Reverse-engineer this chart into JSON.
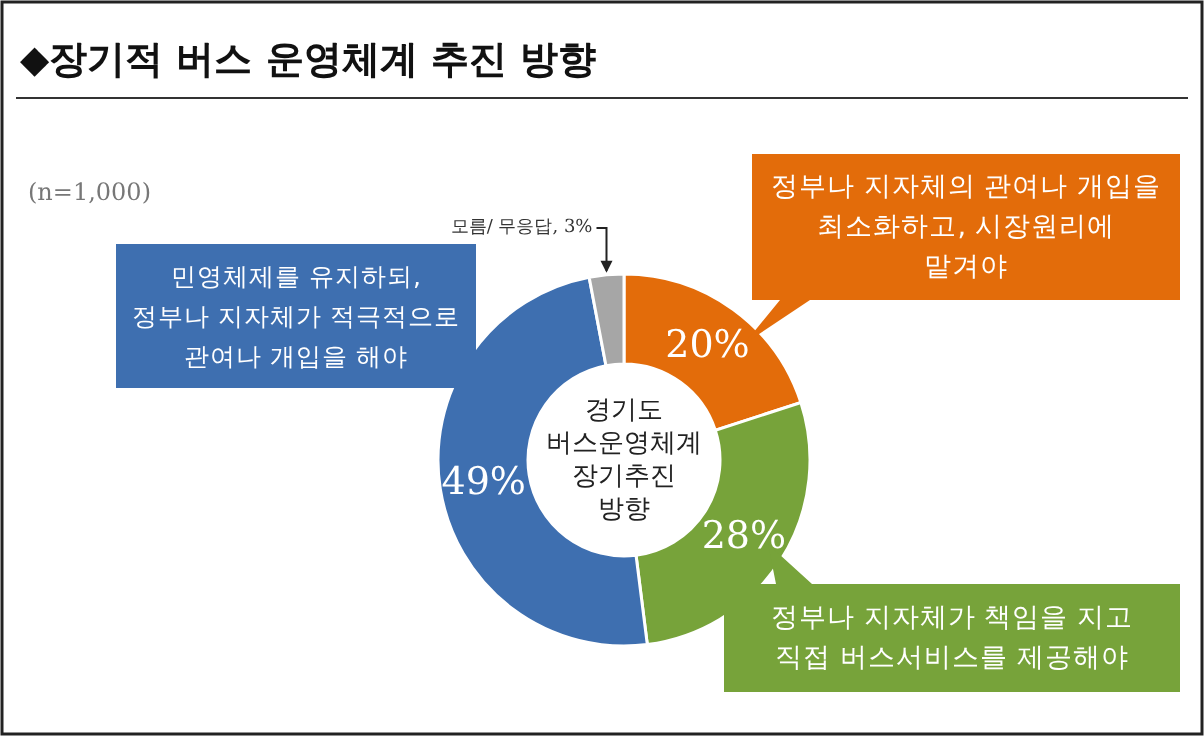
{
  "chart_data": {
    "type": "donut",
    "title": "◆장기적 버스 운영체계 추진 방향",
    "categories": [
      "정부나 지자체의 관여나 개입을\n최소화하고, 시장원리에\n맡겨야",
      "정부나 지자체가 책임을 지고\n직접 버스서비스를 제공해야",
      "민영체제를 유지하되,\n정부나 지자체가 적극적으로\n관여나 개입을 해야",
      "모름/ 무응답"
    ],
    "values": [
      20,
      28,
      49,
      3
    ],
    "colors": [
      "#e36c0a",
      "#77a33a",
      "#3e6fb0",
      "#a6a6a6"
    ],
    "value_labels": [
      "20%",
      "28%",
      "49%",
      "3%"
    ],
    "annotations": [
      "(n=1,000)",
      "경기도\n버스운영체계\n장기추진\n방향"
    ]
  }
}
